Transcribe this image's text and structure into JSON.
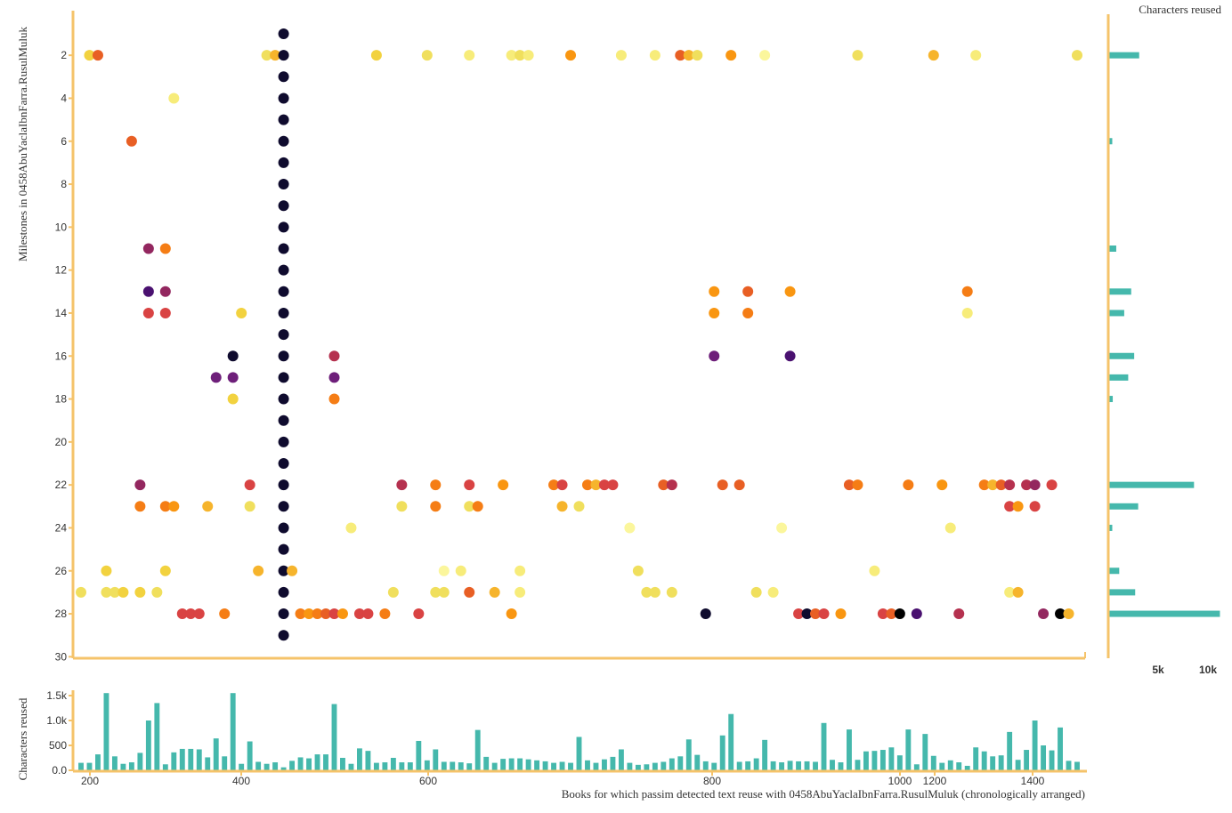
{
  "chart_data": [
    {
      "type": "scatter",
      "ylabel": "Milestones in 0458AbuYaclaIbnFarra.RusulMuluk",
      "y_ticks": [
        2,
        4,
        6,
        8,
        10,
        12,
        14,
        16,
        18,
        20,
        22,
        24,
        26,
        28,
        30
      ],
      "ylim": [
        0.3,
        30
      ],
      "x_domain_note": "same book index as bar panel",
      "grid": false,
      "colors": {
        "a": "#0f0b2e",
        "b": "#4a1170",
        "c": "#6e1f7a",
        "d": "#93275f",
        "e": "#b5314f",
        "f": "#d94343",
        "g": "#e85f24",
        "h": "#f57d15",
        "i": "#f99611",
        "j": "#f6b42c",
        "k": "#f2d23f",
        "l": "#f0df5d",
        "m": "#f7ec7a",
        "n": "#fbf69c",
        "z": "#000000"
      },
      "points": [
        [
          1,
          27,
          "l"
        ],
        [
          2,
          2,
          "k"
        ],
        [
          3,
          2,
          "g"
        ],
        [
          4,
          26,
          "k"
        ],
        [
          4,
          27,
          "l"
        ],
        [
          5,
          27,
          "l"
        ],
        [
          6,
          27,
          "k"
        ],
        [
          7,
          6,
          "g"
        ],
        [
          8,
          22,
          "d"
        ],
        [
          8,
          23,
          "h"
        ],
        [
          8,
          27,
          "k"
        ],
        [
          9,
          11,
          "d"
        ],
        [
          9,
          13,
          "b"
        ],
        [
          9,
          14,
          "f"
        ],
        [
          10,
          27,
          "l"
        ],
        [
          11,
          11,
          "h"
        ],
        [
          11,
          13,
          "d"
        ],
        [
          11,
          14,
          "f"
        ],
        [
          11,
          26,
          "k"
        ],
        [
          11,
          23,
          "h"
        ],
        [
          12,
          4,
          "m"
        ],
        [
          12,
          23,
          "i"
        ],
        [
          13,
          28,
          "f"
        ],
        [
          14,
          28,
          "f"
        ],
        [
          15,
          28,
          "f"
        ],
        [
          16,
          23,
          "j"
        ],
        [
          17,
          17,
          "c"
        ],
        [
          18,
          28,
          "h"
        ],
        [
          19,
          16,
          "a"
        ],
        [
          19,
          17,
          "c"
        ],
        [
          19,
          18,
          "k"
        ],
        [
          20,
          14,
          "k"
        ],
        [
          21,
          22,
          "f"
        ],
        [
          21,
          23,
          "l"
        ],
        [
          22,
          26,
          "j"
        ],
        [
          23,
          2,
          "l"
        ],
        [
          24,
          2,
          "j"
        ],
        [
          25,
          1,
          "a"
        ],
        [
          25,
          2,
          "a"
        ],
        [
          25,
          3,
          "a"
        ],
        [
          25,
          4,
          "a"
        ],
        [
          25,
          5,
          "a"
        ],
        [
          25,
          6,
          "a"
        ],
        [
          25,
          7,
          "a"
        ],
        [
          25,
          8,
          "a"
        ],
        [
          25,
          9,
          "a"
        ],
        [
          25,
          10,
          "a"
        ],
        [
          25,
          11,
          "a"
        ],
        [
          25,
          12,
          "a"
        ],
        [
          25,
          13,
          "a"
        ],
        [
          25,
          14,
          "a"
        ],
        [
          25,
          15,
          "a"
        ],
        [
          25,
          16,
          "a"
        ],
        [
          25,
          17,
          "a"
        ],
        [
          25,
          18,
          "a"
        ],
        [
          25,
          19,
          "a"
        ],
        [
          25,
          20,
          "a"
        ],
        [
          25,
          21,
          "a"
        ],
        [
          25,
          22,
          "a"
        ],
        [
          25,
          23,
          "a"
        ],
        [
          25,
          24,
          "a"
        ],
        [
          25,
          25,
          "a"
        ],
        [
          25,
          26,
          "a"
        ],
        [
          25,
          27,
          "a"
        ],
        [
          25,
          28,
          "a"
        ],
        [
          25,
          29,
          "a"
        ],
        [
          26,
          26,
          "j"
        ],
        [
          27,
          28,
          "h"
        ],
        [
          28,
          28,
          "i"
        ],
        [
          29,
          28,
          "h"
        ],
        [
          30,
          28,
          "g"
        ],
        [
          31,
          16,
          "e"
        ],
        [
          31,
          17,
          "c"
        ],
        [
          31,
          18,
          "h"
        ],
        [
          31,
          28,
          "f"
        ],
        [
          32,
          28,
          "i"
        ],
        [
          33,
          24,
          "m"
        ],
        [
          34,
          28,
          "f"
        ],
        [
          35,
          28,
          "f"
        ],
        [
          36,
          2,
          "k"
        ],
        [
          37,
          28,
          "h"
        ],
        [
          38,
          27,
          "l"
        ],
        [
          39,
          22,
          "e"
        ],
        [
          39,
          23,
          "l"
        ],
        [
          41,
          28,
          "f"
        ],
        [
          42,
          2,
          "l"
        ],
        [
          43,
          22,
          "h"
        ],
        [
          43,
          23,
          "h"
        ],
        [
          43,
          27,
          "l"
        ],
        [
          44,
          27,
          "l"
        ],
        [
          44,
          26,
          "n"
        ],
        [
          46,
          26,
          "m"
        ],
        [
          47,
          2,
          "m"
        ],
        [
          47,
          22,
          "f"
        ],
        [
          47,
          23,
          "l"
        ],
        [
          47,
          27,
          "g"
        ],
        [
          48,
          23,
          "h"
        ],
        [
          50,
          27,
          "j"
        ],
        [
          51,
          22,
          "i"
        ],
        [
          52,
          2,
          "m"
        ],
        [
          53,
          2,
          "l"
        ],
        [
          53,
          26,
          "m"
        ],
        [
          53,
          27,
          "m"
        ],
        [
          52,
          28,
          "i"
        ],
        [
          54,
          2,
          "m"
        ],
        [
          57,
          22,
          "h"
        ],
        [
          58,
          22,
          "f"
        ],
        [
          58,
          23,
          "j"
        ],
        [
          59,
          2,
          "i"
        ],
        [
          60,
          23,
          "l"
        ],
        [
          61,
          22,
          "h"
        ],
        [
          62,
          22,
          "j"
        ],
        [
          63,
          22,
          "f"
        ],
        [
          64,
          22,
          "f"
        ],
        [
          65,
          2,
          "m"
        ],
        [
          66,
          24,
          "n"
        ],
        [
          67,
          26,
          "l"
        ],
        [
          68,
          27,
          "l"
        ],
        [
          69,
          27,
          "l"
        ],
        [
          69,
          2,
          "m"
        ],
        [
          70,
          22,
          "g"
        ],
        [
          71,
          22,
          "e"
        ],
        [
          71,
          27,
          "l"
        ],
        [
          72,
          2,
          "g"
        ],
        [
          73,
          2,
          "j"
        ],
        [
          74,
          2,
          "l"
        ],
        [
          75,
          28,
          "a"
        ],
        [
          76,
          13,
          "i"
        ],
        [
          76,
          14,
          "i"
        ],
        [
          76,
          16,
          "c"
        ],
        [
          77,
          22,
          "g"
        ],
        [
          78,
          2,
          "i"
        ],
        [
          79,
          22,
          "g"
        ],
        [
          80,
          13,
          "g"
        ],
        [
          80,
          14,
          "h"
        ],
        [
          81,
          27,
          "l"
        ],
        [
          82,
          2,
          "n"
        ],
        [
          83,
          27,
          "m"
        ],
        [
          84,
          24,
          "n"
        ],
        [
          85,
          13,
          "i"
        ],
        [
          85,
          16,
          "b"
        ],
        [
          86,
          28,
          "f"
        ],
        [
          87,
          28,
          "a"
        ],
        [
          88,
          28,
          "g"
        ],
        [
          89,
          28,
          "f"
        ],
        [
          91,
          28,
          "i"
        ],
        [
          92,
          22,
          "g"
        ],
        [
          93,
          22,
          "h"
        ],
        [
          93,
          2,
          "l"
        ],
        [
          95,
          26,
          "m"
        ],
        [
          96,
          28,
          "f"
        ],
        [
          97,
          28,
          "g"
        ],
        [
          98,
          28,
          "z"
        ],
        [
          99,
          22,
          "h"
        ],
        [
          100,
          28,
          "b"
        ],
        [
          102,
          2,
          "j"
        ],
        [
          103,
          22,
          "i"
        ],
        [
          104,
          24,
          "m"
        ],
        [
          105,
          28,
          "e"
        ],
        [
          106,
          13,
          "h"
        ],
        [
          106,
          14,
          "m"
        ],
        [
          107,
          2,
          "m"
        ],
        [
          108,
          22,
          "h"
        ],
        [
          109,
          22,
          "j"
        ],
        [
          110,
          22,
          "g"
        ],
        [
          111,
          22,
          "e"
        ],
        [
          111,
          23,
          "f"
        ],
        [
          111,
          27,
          "m"
        ],
        [
          112,
          23,
          "i"
        ],
        [
          112,
          27,
          "j"
        ],
        [
          113,
          22,
          "e"
        ],
        [
          114,
          22,
          "d"
        ],
        [
          114,
          23,
          "f"
        ],
        [
          115,
          28,
          "d"
        ],
        [
          116,
          22,
          "f"
        ],
        [
          117,
          28,
          "z"
        ],
        [
          118,
          28,
          "j"
        ],
        [
          119,
          2,
          "l"
        ]
      ]
    },
    {
      "type": "bar",
      "ylabel": "Characters reused",
      "y_ticks": [
        "0.0",
        "500",
        "1.0k",
        "1.5k"
      ],
      "ylim": [
        0,
        1600
      ],
      "x_ticks": [
        "200",
        "400",
        "600",
        "800",
        "1000",
        "1200",
        "1400"
      ],
      "xlabel": "Books for which passim detected text reuse with 0458AbuYaclaIbnFarra.RusulMuluk (chronologically arranged)",
      "values": [
        150,
        150,
        320,
        1550,
        280,
        130,
        160,
        350,
        1000,
        1350,
        120,
        360,
        430,
        430,
        420,
        260,
        640,
        280,
        1550,
        130,
        580,
        170,
        130,
        160,
        60,
        190,
        260,
        240,
        320,
        320,
        1330,
        250,
        130,
        440,
        390,
        150,
        160,
        250,
        160,
        160,
        590,
        200,
        420,
        170,
        170,
        160,
        140,
        810,
        270,
        150,
        230,
        240,
        240,
        220,
        200,
        180,
        150,
        170,
        150,
        670,
        200,
        150,
        220,
        270,
        420,
        150,
        110,
        120,
        150,
        170,
        240,
        280,
        620,
        310,
        180,
        150,
        700,
        1130,
        170,
        180,
        240,
        610,
        180,
        160,
        190,
        180,
        180,
        170,
        950,
        210,
        160,
        820,
        210,
        380,
        390,
        410,
        460,
        300,
        820,
        120,
        730,
        290,
        150,
        200,
        160,
        90,
        460,
        380,
        280,
        300,
        770,
        210,
        410,
        1000,
        500,
        400,
        860,
        190,
        170
      ]
    },
    {
      "type": "bar",
      "orientation": "horizontal",
      "title": "Characters reused",
      "x_ticks": [
        "5k",
        "10k"
      ],
      "xlim": [
        0,
        11500
      ],
      "values": [
        {
          "milestone": 2,
          "value": 3100
        },
        {
          "milestone": 4,
          "value": 120
        },
        {
          "milestone": 6,
          "value": 400
        },
        {
          "milestone": 11,
          "value": 800
        },
        {
          "milestone": 13,
          "value": 2300
        },
        {
          "milestone": 14,
          "value": 1600
        },
        {
          "milestone": 16,
          "value": 2600
        },
        {
          "milestone": 17,
          "value": 2000
        },
        {
          "milestone": 18,
          "value": 450
        },
        {
          "milestone": 22,
          "value": 8600
        },
        {
          "milestone": 23,
          "value": 3000
        },
        {
          "milestone": 24,
          "value": 400
        },
        {
          "milestone": 26,
          "value": 1100
        },
        {
          "milestone": 27,
          "value": 2700
        },
        {
          "milestone": 28,
          "value": 11200
        }
      ]
    }
  ]
}
